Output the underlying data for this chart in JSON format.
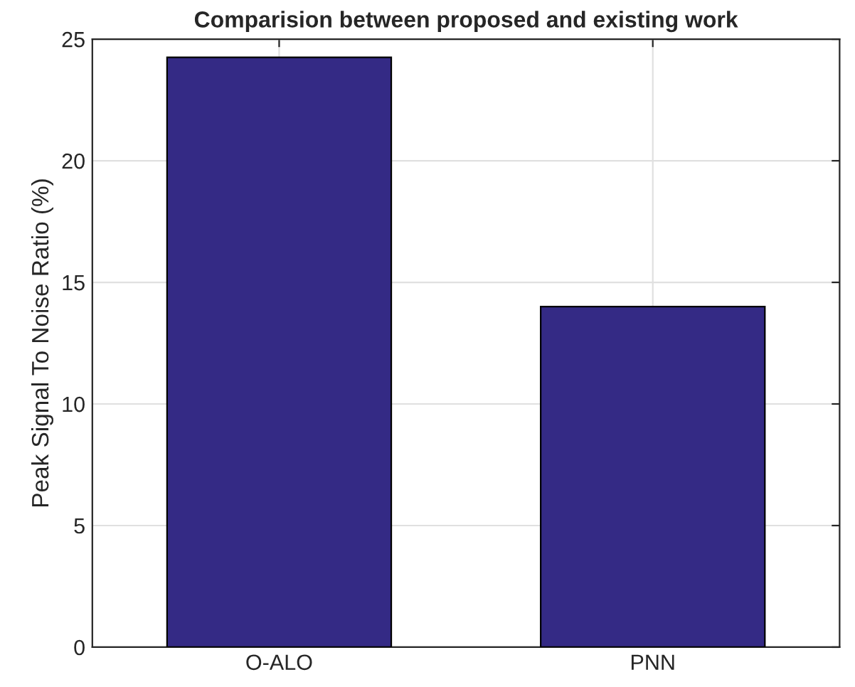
{
  "chart_data": {
    "type": "bar",
    "title": "Comparision between proposed and existing work",
    "ylabel": "Peak Signal To Noise Ratio (%)",
    "categories": [
      "O-ALO",
      "PNN"
    ],
    "values": [
      24.25,
      14
    ],
    "color": "#342a85",
    "ylim": [
      0,
      25
    ],
    "yticks": [
      0,
      5,
      10,
      15,
      20,
      25
    ],
    "grid": true
  }
}
